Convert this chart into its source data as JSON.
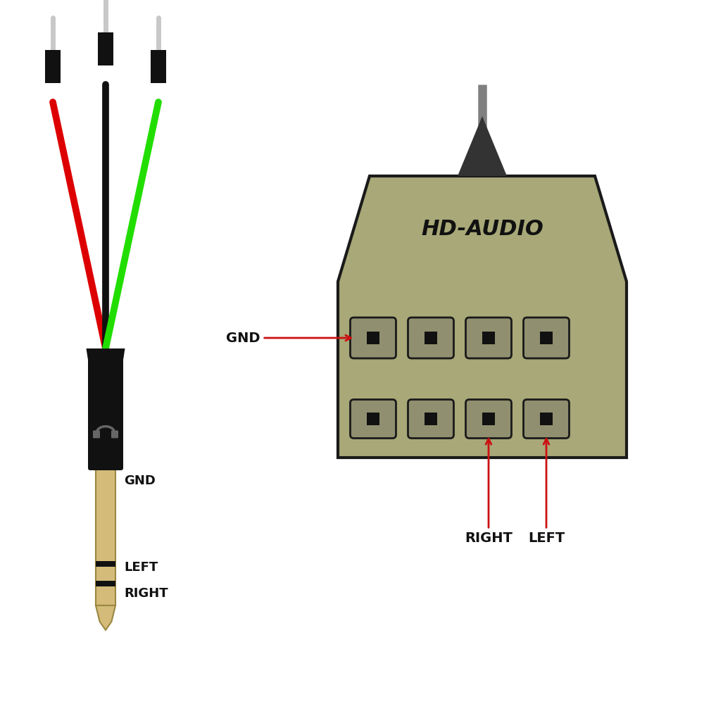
{
  "bg_color": "#ffffff",
  "wire_red": "#dd0000",
  "wire_black": "#111111",
  "wire_green": "#22dd00",
  "wire_gray": "#c8c8c8",
  "dupont_block_color": "#111111",
  "jack_body_color": "#111111",
  "jack_tip_color": "#d4bb7a",
  "jack_outline_color": "#9a8840",
  "jack_ring_color": "#111111",
  "headphone_icon_color": "#666666",
  "hd_body_color": "#a8a878",
  "hd_dark_color": "#888860",
  "hd_border_color": "#1a1a1a",
  "hd_pin_slot_color": "#909070",
  "hd_pin_hole_color": "#111111",
  "hd_cable_color": "#444444",
  "label_color": "#111111",
  "arrow_color": "#cc1111",
  "label_gnd": "GND",
  "label_left": "LEFT",
  "label_right": "RIGHT",
  "hd_label": "HD-AUDIO"
}
